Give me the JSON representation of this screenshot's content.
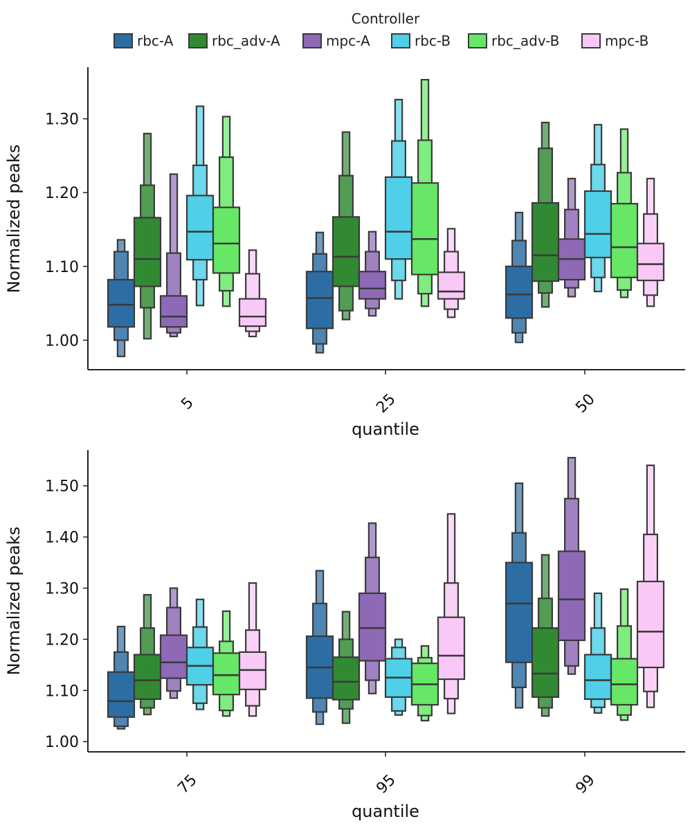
{
  "chart_data": {
    "type": "letter-value boxplot",
    "legend": {
      "title": "Controller",
      "entries": [
        "rbc-A",
        "rbc_adv-A",
        "mpc-A",
        "rbc-B",
        "rbc_adv-B",
        "mpc-B"
      ],
      "placement": "top-center"
    },
    "series_colors": {
      "rbc-A": "#2c6ea4",
      "rbc_adv-A": "#318a33",
      "mpc-A": "#8e69b6",
      "rbc-B": "#4fd0e8",
      "rbc_adv-B": "#66e866",
      "mpc-B": "#f9c8f6"
    },
    "panels": [
      {
        "xlabel": "quantile",
        "ylabel": "Normalized peaks",
        "ylim": [
          0.96,
          1.37
        ],
        "yticks": [
          "1.00",
          "1.10",
          "1.20",
          "1.30"
        ],
        "categories": [
          "5",
          "25",
          "50"
        ],
        "groups": [
          {
            "category": "5",
            "boxes": [
              {
                "series": "rbc-A",
                "median": 1.048,
                "levels": [
                  [
                    1.018,
                    1.082
                  ],
                  [
                    1.0,
                    1.12
                  ],
                  [
                    0.978,
                    1.136
                  ]
                ]
              },
              {
                "series": "rbc_adv-A",
                "median": 1.11,
                "levels": [
                  [
                    1.073,
                    1.166
                  ],
                  [
                    1.044,
                    1.21
                  ],
                  [
                    1.002,
                    1.28
                  ]
                ]
              },
              {
                "series": "mpc-A",
                "median": 1.032,
                "levels": [
                  [
                    1.018,
                    1.06
                  ],
                  [
                    1.01,
                    1.118
                  ],
                  [
                    1.005,
                    1.225
                  ]
                ]
              },
              {
                "series": "rbc-B",
                "median": 1.147,
                "levels": [
                  [
                    1.109,
                    1.196
                  ],
                  [
                    1.082,
                    1.237
                  ],
                  [
                    1.047,
                    1.317
                  ]
                ]
              },
              {
                "series": "rbc_adv-B",
                "median": 1.131,
                "levels": [
                  [
                    1.091,
                    1.18
                  ],
                  [
                    1.067,
                    1.248
                  ],
                  [
                    1.046,
                    1.303
                  ]
                ]
              },
              {
                "series": "mpc-B",
                "median": 1.032,
                "levels": [
                  [
                    1.019,
                    1.056
                  ],
                  [
                    1.012,
                    1.09
                  ],
                  [
                    1.005,
                    1.122
                  ]
                ]
              }
            ]
          },
          {
            "category": "25",
            "boxes": [
              {
                "series": "rbc-A",
                "median": 1.057,
                "levels": [
                  [
                    1.016,
                    1.093
                  ],
                  [
                    0.995,
                    1.117
                  ],
                  [
                    0.983,
                    1.146
                  ]
                ]
              },
              {
                "series": "rbc_adv-A",
                "median": 1.113,
                "levels": [
                  [
                    1.073,
                    1.167
                  ],
                  [
                    1.04,
                    1.223
                  ],
                  [
                    1.028,
                    1.282
                  ]
                ]
              },
              {
                "series": "mpc-A",
                "median": 1.07,
                "levels": [
                  [
                    1.056,
                    1.093
                  ],
                  [
                    1.043,
                    1.12
                  ],
                  [
                    1.033,
                    1.147
                  ]
                ]
              },
              {
                "series": "rbc-B",
                "median": 1.147,
                "levels": [
                  [
                    1.11,
                    1.221
                  ],
                  [
                    1.081,
                    1.27
                  ],
                  [
                    1.056,
                    1.326
                  ]
                ]
              },
              {
                "series": "rbc_adv-B",
                "median": 1.137,
                "levels": [
                  [
                    1.089,
                    1.213
                  ],
                  [
                    1.063,
                    1.271
                  ],
                  [
                    1.046,
                    1.353
                  ]
                ]
              },
              {
                "series": "mpc-B",
                "median": 1.066,
                "levels": [
                  [
                    1.056,
                    1.092
                  ],
                  [
                    1.042,
                    1.12
                  ],
                  [
                    1.031,
                    1.151
                  ]
                ]
              }
            ]
          },
          {
            "category": "50",
            "boxes": [
              {
                "series": "rbc-A",
                "median": 1.062,
                "levels": [
                  [
                    1.03,
                    1.1
                  ],
                  [
                    1.01,
                    1.135
                  ],
                  [
                    0.997,
                    1.173
                  ]
                ]
              },
              {
                "series": "rbc_adv-A",
                "median": 1.115,
                "levels": [
                  [
                    1.08,
                    1.186
                  ],
                  [
                    1.064,
                    1.26
                  ],
                  [
                    1.045,
                    1.295
                  ]
                ]
              },
              {
                "series": "mpc-A",
                "median": 1.11,
                "levels": [
                  [
                    1.082,
                    1.137
                  ],
                  [
                    1.071,
                    1.177
                  ],
                  [
                    1.059,
                    1.219
                  ]
                ]
              },
              {
                "series": "rbc-B",
                "median": 1.144,
                "levels": [
                  [
                    1.112,
                    1.202
                  ],
                  [
                    1.085,
                    1.238
                  ],
                  [
                    1.066,
                    1.292
                  ]
                ]
              },
              {
                "series": "rbc_adv-B",
                "median": 1.126,
                "levels": [
                  [
                    1.085,
                    1.185
                  ],
                  [
                    1.068,
                    1.227
                  ],
                  [
                    1.058,
                    1.286
                  ]
                ]
              },
              {
                "series": "mpc-B",
                "median": 1.103,
                "levels": [
                  [
                    1.081,
                    1.131
                  ],
                  [
                    1.061,
                    1.171
                  ],
                  [
                    1.046,
                    1.219
                  ]
                ]
              }
            ]
          }
        ]
      },
      {
        "xlabel": "quantile",
        "ylabel": "Normalized peaks",
        "ylim": [
          0.98,
          1.57
        ],
        "yticks": [
          "1.00",
          "1.10",
          "1.20",
          "1.30",
          "1.40",
          "1.50"
        ],
        "categories": [
          "75",
          "95",
          "99"
        ],
        "groups": [
          {
            "category": "75",
            "boxes": [
              {
                "series": "rbc-A",
                "median": 1.079,
                "levels": [
                  [
                    1.048,
                    1.136
                  ],
                  [
                    1.03,
                    1.175
                  ],
                  [
                    1.025,
                    1.225
                  ]
                ]
              },
              {
                "series": "rbc_adv-A",
                "median": 1.12,
                "levels": [
                  [
                    1.083,
                    1.17
                  ],
                  [
                    1.066,
                    1.222
                  ],
                  [
                    1.053,
                    1.287
                  ]
                ]
              },
              {
                "series": "mpc-A",
                "median": 1.155,
                "levels": [
                  [
                    1.124,
                    1.208
                  ],
                  [
                    1.099,
                    1.262
                  ],
                  [
                    1.085,
                    1.3
                  ]
                ]
              },
              {
                "series": "rbc-B",
                "median": 1.148,
                "levels": [
                  [
                    1.111,
                    1.184
                  ],
                  [
                    1.075,
                    1.224
                  ],
                  [
                    1.063,
                    1.278
                  ]
                ]
              },
              {
                "series": "rbc_adv-B",
                "median": 1.13,
                "levels": [
                  [
                    1.092,
                    1.173
                  ],
                  [
                    1.061,
                    1.196
                  ],
                  [
                    1.05,
                    1.255
                  ]
                ]
              },
              {
                "series": "mpc-B",
                "median": 1.14,
                "levels": [
                  [
                    1.102,
                    1.175
                  ],
                  [
                    1.07,
                    1.218
                  ],
                  [
                    1.05,
                    1.31
                  ]
                ]
              }
            ]
          },
          {
            "category": "95",
            "boxes": [
              {
                "series": "rbc-A",
                "median": 1.145,
                "levels": [
                  [
                    1.085,
                    1.206
                  ],
                  [
                    1.058,
                    1.27
                  ],
                  [
                    1.034,
                    1.334
                  ]
                ]
              },
              {
                "series": "rbc_adv-A",
                "median": 1.117,
                "levels": [
                  [
                    1.082,
                    1.165
                  ],
                  [
                    1.064,
                    1.2
                  ],
                  [
                    1.036,
                    1.254
                  ]
                ]
              },
              {
                "series": "mpc-A",
                "median": 1.222,
                "levels": [
                  [
                    1.158,
                    1.29
                  ],
                  [
                    1.12,
                    1.36
                  ],
                  [
                    1.094,
                    1.427
                  ]
                ]
              },
              {
                "series": "rbc-B",
                "median": 1.125,
                "levels": [
                  [
                    1.087,
                    1.162
                  ],
                  [
                    1.06,
                    1.184
                  ],
                  [
                    1.052,
                    1.2
                  ]
                ]
              },
              {
                "series": "rbc_adv-B",
                "median": 1.112,
                "levels": [
                  [
                    1.072,
                    1.153
                  ],
                  [
                    1.051,
                    1.164
                  ],
                  [
                    1.041,
                    1.187
                  ]
                ]
              },
              {
                "series": "mpc-B",
                "median": 1.168,
                "levels": [
                  [
                    1.122,
                    1.243
                  ],
                  [
                    1.084,
                    1.31
                  ],
                  [
                    1.055,
                    1.445
                  ]
                ]
              }
            ]
          },
          {
            "category": "99",
            "boxes": [
              {
                "series": "rbc-A",
                "median": 1.27,
                "levels": [
                  [
                    1.155,
                    1.35
                  ],
                  [
                    1.106,
                    1.408
                  ],
                  [
                    1.066,
                    1.505
                  ]
                ]
              },
              {
                "series": "rbc_adv-A",
                "median": 1.133,
                "levels": [
                  [
                    1.087,
                    1.222
                  ],
                  [
                    1.066,
                    1.28
                  ],
                  [
                    1.05,
                    1.365
                  ]
                ]
              },
              {
                "series": "mpc-A",
                "median": 1.278,
                "levels": [
                  [
                    1.198,
                    1.372
                  ],
                  [
                    1.148,
                    1.475
                  ],
                  [
                    1.132,
                    1.555
                  ]
                ]
              },
              {
                "series": "rbc-B",
                "median": 1.12,
                "levels": [
                  [
                    1.083,
                    1.17
                  ],
                  [
                    1.067,
                    1.222
                  ],
                  [
                    1.056,
                    1.29
                  ]
                ]
              },
              {
                "series": "rbc_adv-B",
                "median": 1.112,
                "levels": [
                  [
                    1.072,
                    1.162
                  ],
                  [
                    1.052,
                    1.226
                  ],
                  [
                    1.042,
                    1.298
                  ]
                ]
              },
              {
                "series": "mpc-B",
                "median": 1.215,
                "levels": [
                  [
                    1.145,
                    1.313
                  ],
                  [
                    1.098,
                    1.405
                  ],
                  [
                    1.067,
                    1.54
                  ]
                ]
              }
            ]
          }
        ]
      }
    ]
  }
}
